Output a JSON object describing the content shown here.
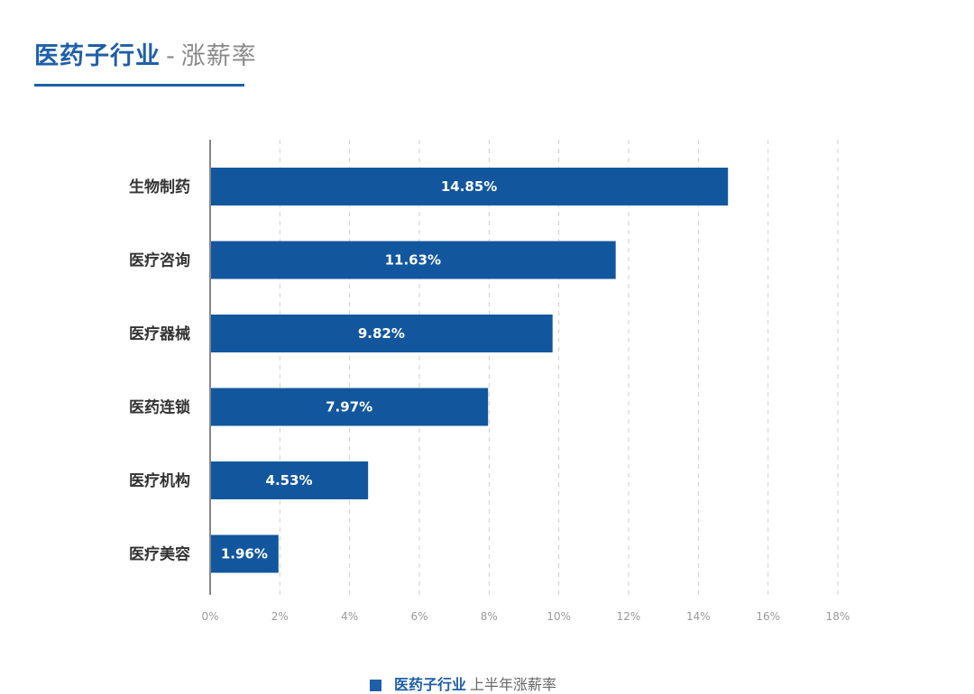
{
  "header": {
    "title": "医药子行业",
    "separator": "-",
    "subtitle": "涨薪率"
  },
  "legend": {
    "series_name": "医药子行业",
    "suffix": "上半年涨薪率"
  },
  "colors": {
    "bar": "#12579e",
    "accent": "#1f5fa8",
    "grid": "#cfcfcf",
    "axis": "#888888"
  },
  "chart_data": {
    "type": "bar",
    "orientation": "horizontal",
    "categories": [
      "生物制药",
      "医疗咨询",
      "医疗器械",
      "医药连锁",
      "医疗机构",
      "医疗美容"
    ],
    "values": [
      14.85,
      11.63,
      9.82,
      7.97,
      4.53,
      1.96
    ],
    "value_labels": [
      "14.85%",
      "11.63%",
      "9.82%",
      "7.97%",
      "4.53%",
      "1.96%"
    ],
    "x_ticks": [
      "0%",
      "2%",
      "4%",
      "6%",
      "8%",
      "10%",
      "12%",
      "14%",
      "16%",
      "18%"
    ],
    "xlim": [
      0,
      18
    ],
    "grid": "vertical dashed",
    "legend_position": "bottom",
    "series": [
      {
        "name": "医药子行业 上半年涨薪率",
        "values": [
          14.85,
          11.63,
          9.82,
          7.97,
          4.53,
          1.96
        ]
      }
    ]
  }
}
